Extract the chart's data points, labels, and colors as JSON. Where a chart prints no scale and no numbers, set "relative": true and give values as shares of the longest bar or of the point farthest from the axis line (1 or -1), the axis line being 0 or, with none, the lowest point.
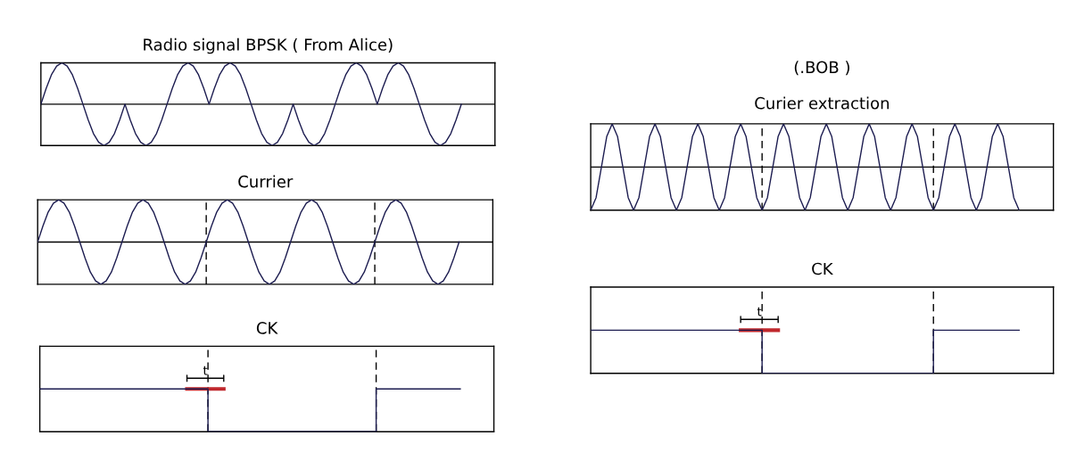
{
  "chart_data": [
    {
      "type": "line",
      "title": "Radio signal BPSK ( From Alice)",
      "relative": true,
      "categories": [
        null,
        null,
        null,
        null,
        null,
        null,
        null,
        null,
        null,
        null,
        null,
        null,
        null,
        null,
        null,
        null,
        null,
        null,
        null,
        null,
        null,
        null,
        null,
        null,
        null,
        null,
        null,
        null,
        null,
        null,
        null,
        null,
        null,
        null,
        null,
        null,
        null,
        null,
        null,
        null,
        null,
        null,
        null,
        null,
        null,
        null,
        null,
        null,
        null,
        null,
        null,
        null,
        null,
        null,
        null,
        null,
        null,
        null,
        null,
        null,
        null,
        null,
        null,
        null,
        null,
        null,
        null,
        null,
        null,
        null,
        null,
        null,
        null,
        null,
        null,
        null,
        null,
        null,
        null,
        null,
        null,
        null,
        null,
        null,
        null,
        null,
        null
      ],
      "series": [
        {
          "color": "#1c1c50",
          "values": [
            0,
            0.38,
            0.71,
            0.92,
            1,
            0.92,
            0.71,
            0.38,
            0,
            -0.38,
            -0.71,
            -0.92,
            -1,
            -0.92,
            -0.71,
            -0.38,
            0,
            -0.38,
            -0.71,
            -0.92,
            -1,
            -0.92,
            -0.71,
            -0.38,
            0,
            0.38,
            0.71,
            0.92,
            1,
            0.92,
            0.71,
            0.38,
            0,
            0.38,
            0.71,
            0.92,
            1,
            0.92,
            0.71,
            0.38,
            0,
            -0.38,
            -0.71,
            -0.92,
            -1,
            -0.92,
            -0.71,
            -0.38,
            0,
            -0.38,
            -0.71,
            -0.92,
            -1,
            -0.92,
            -0.71,
            -0.38,
            0,
            0.38,
            0.71,
            0.92,
            1,
            0.92,
            0.71,
            0.38,
            0,
            0.38,
            0.71,
            0.92,
            1,
            0.92,
            0.71,
            0.38,
            0,
            -0.38,
            -0.71,
            -0.92,
            -1,
            -0.92,
            -0.71,
            -0.38,
            0,
            null,
            null,
            null,
            null,
            null,
            null
          ]
        }
      ]
    },
    {
      "type": "line",
      "title": "Currier",
      "relative": true,
      "categories": [
        null,
        null,
        null,
        null,
        null,
        null,
        null,
        null,
        null,
        null,
        null,
        null,
        null,
        null,
        null,
        null,
        null,
        null,
        null,
        null,
        null,
        null,
        null,
        null,
        null,
        null,
        null,
        null,
        null,
        null,
        null,
        null,
        null,
        null,
        null,
        null,
        null,
        null,
        null,
        null,
        null,
        null,
        null,
        null,
        null,
        null,
        null,
        null,
        null,
        null,
        null,
        null,
        null,
        null,
        null,
        null,
        null,
        null,
        null,
        null,
        null,
        null,
        null,
        null,
        null,
        null,
        null,
        null,
        null,
        null,
        null,
        null,
        null,
        null,
        null,
        null,
        null,
        null,
        null,
        null,
        null,
        null,
        null,
        null,
        null,
        null,
        null
      ],
      "series": [
        {
          "color": "#1c1c50",
          "values": [
            0,
            0.38,
            0.71,
            0.92,
            1,
            0.92,
            0.71,
            0.38,
            0,
            -0.38,
            -0.71,
            -0.92,
            -1,
            -0.92,
            -0.71,
            -0.38,
            0,
            0.38,
            0.71,
            0.92,
            1,
            0.92,
            0.71,
            0.38,
            0,
            -0.38,
            -0.71,
            -0.92,
            -1,
            -0.92,
            -0.71,
            -0.38,
            0,
            0.38,
            0.71,
            0.92,
            1,
            0.92,
            0.71,
            0.38,
            0,
            -0.38,
            -0.71,
            -0.92,
            -1,
            -0.92,
            -0.71,
            -0.38,
            0,
            0.38,
            0.71,
            0.92,
            1,
            0.92,
            0.71,
            0.38,
            0,
            -0.38,
            -0.71,
            -0.92,
            -1,
            -0.92,
            -0.71,
            -0.38,
            0,
            0.38,
            0.71,
            0.92,
            1,
            0.92,
            0.71,
            0.38,
            0,
            -0.38,
            -0.71,
            -0.92,
            -1,
            -0.92,
            -0.71,
            -0.38,
            0,
            null,
            null,
            null,
            null,
            null,
            null
          ]
        }
      ]
    },
    {
      "type": "step",
      "title": "CK",
      "relative": true,
      "categories": [
        null,
        null,
        null,
        null,
        null,
        null,
        null,
        null,
        null,
        null,
        null,
        null,
        null,
        null,
        null,
        null,
        null,
        null,
        null,
        null,
        null,
        null,
        null,
        null,
        null,
        null,
        null,
        null,
        null,
        null,
        null,
        null,
        null,
        null,
        null,
        null,
        null,
        null,
        null,
        null,
        null,
        null,
        null,
        null,
        null,
        null,
        null,
        null,
        null,
        null,
        null,
        null,
        null,
        null,
        null,
        null,
        null,
        null,
        null,
        null,
        null,
        null,
        null,
        null,
        null,
        null,
        null,
        null,
        null,
        null,
        null,
        null,
        null,
        null,
        null,
        null,
        null,
        null,
        null,
        null,
        null,
        null,
        null,
        null,
        null,
        null,
        null
      ],
      "annotations": [
        "t"
      ],
      "series": [
        {
          "color": "#1c1c50",
          "values": [
            1,
            1,
            1,
            1,
            1,
            1,
            1,
            1,
            1,
            1,
            1,
            1,
            1,
            1,
            1,
            1,
            1,
            1,
            1,
            1,
            1,
            1,
            1,
            1,
            1,
            1,
            1,
            1,
            1,
            1,
            1,
            1,
            0,
            0,
            0,
            0,
            0,
            0,
            0,
            0,
            0,
            0,
            0,
            0,
            0,
            0,
            0,
            0,
            0,
            0,
            0,
            0,
            0,
            0,
            0,
            0,
            0,
            0,
            0,
            0,
            0,
            0,
            0,
            0,
            1,
            1,
            1,
            1,
            1,
            1,
            1,
            1,
            1,
            1,
            1,
            1,
            1,
            1,
            1,
            1,
            1,
            null,
            null,
            null,
            null,
            null,
            null
          ]
        },
        {
          "type": "line",
          "color": "#c0282d",
          "values": [
            null,
            null,
            null,
            null,
            null,
            null,
            null,
            null,
            null,
            null,
            null,
            null,
            null,
            null,
            null,
            null,
            null,
            null,
            null,
            null,
            null,
            null,
            null,
            null,
            null,
            null,
            null,
            null,
            1,
            1,
            1,
            1,
            1,
            1,
            1,
            1,
            null,
            null,
            null,
            null,
            null,
            null,
            null,
            null,
            null,
            null,
            null,
            null,
            null,
            null,
            null,
            null,
            null,
            null,
            null,
            null,
            null,
            null,
            null,
            null,
            null,
            null,
            null,
            null,
            null,
            null,
            null,
            null,
            null,
            null,
            null,
            null,
            null,
            null,
            null,
            null,
            null,
            null,
            null,
            null,
            null,
            null,
            null,
            null,
            null,
            null,
            null
          ]
        }
      ]
    },
    {
      "type": "line",
      "title": "(.BOB )",
      "subtitle": "Curier extraction",
      "relative": true,
      "categories": [
        null,
        null,
        null,
        null,
        null,
        null,
        null,
        null,
        null,
        null,
        null,
        null,
        null,
        null,
        null,
        null,
        null,
        null,
        null,
        null,
        null,
        null,
        null,
        null,
        null,
        null,
        null,
        null,
        null,
        null,
        null,
        null,
        null,
        null,
        null,
        null,
        null,
        null,
        null,
        null,
        null,
        null,
        null,
        null,
        null,
        null,
        null,
        null,
        null,
        null,
        null,
        null,
        null,
        null,
        null,
        null,
        null,
        null,
        null,
        null,
        null,
        null,
        null,
        null,
        null,
        null,
        null,
        null,
        null,
        null,
        null,
        null,
        null,
        null,
        null,
        null,
        null,
        null,
        null,
        null,
        null,
        null,
        null,
        null,
        null,
        null,
        null
      ],
      "series": [
        {
          "color": "#1c1c50",
          "values": [
            -1,
            -0.71,
            0,
            0.71,
            1,
            0.71,
            0,
            -0.71,
            -1,
            -0.71,
            0,
            0.71,
            1,
            0.71,
            0,
            -0.71,
            -1,
            -0.71,
            0,
            0.71,
            1,
            0.71,
            0,
            -0.71,
            -1,
            -0.71,
            0,
            0.71,
            1,
            0.71,
            0,
            -0.71,
            -1,
            -0.71,
            0,
            0.71,
            1,
            0.71,
            0,
            -0.71,
            -1,
            -0.71,
            0,
            0.71,
            1,
            0.71,
            0,
            -0.71,
            -1,
            -0.71,
            0,
            0.71,
            1,
            0.71,
            0,
            -0.71,
            -1,
            -0.71,
            0,
            0.71,
            1,
            0.71,
            0,
            -0.71,
            -1,
            -0.71,
            0,
            0.71,
            1,
            0.71,
            0,
            -0.71,
            -1,
            -0.71,
            0,
            0.71,
            1,
            0.71,
            0,
            -0.71,
            -1,
            null,
            null,
            null,
            null,
            null,
            null
          ]
        }
      ]
    },
    {
      "type": "step",
      "title": "CK",
      "relative": true,
      "categories": [
        null,
        null,
        null,
        null,
        null,
        null,
        null,
        null,
        null,
        null,
        null,
        null,
        null,
        null,
        null,
        null,
        null,
        null,
        null,
        null,
        null,
        null,
        null,
        null,
        null,
        null,
        null,
        null,
        null,
        null,
        null,
        null,
        null,
        null,
        null,
        null,
        null,
        null,
        null,
        null,
        null,
        null,
        null,
        null,
        null,
        null,
        null,
        null,
        null,
        null,
        null,
        null,
        null,
        null,
        null,
        null,
        null,
        null,
        null,
        null,
        null,
        null,
        null,
        null,
        null,
        null,
        null,
        null,
        null,
        null,
        null,
        null,
        null,
        null,
        null,
        null,
        null,
        null,
        null,
        null,
        null,
        null,
        null,
        null,
        null,
        null,
        null
      ],
      "annotations": [
        "t"
      ],
      "series": [
        {
          "color": "#1c1c50",
          "values": [
            1,
            1,
            1,
            1,
            1,
            1,
            1,
            1,
            1,
            1,
            1,
            1,
            1,
            1,
            1,
            1,
            1,
            1,
            1,
            1,
            1,
            1,
            1,
            1,
            1,
            1,
            1,
            1,
            1,
            1,
            1,
            1,
            0,
            0,
            0,
            0,
            0,
            0,
            0,
            0,
            0,
            0,
            0,
            0,
            0,
            0,
            0,
            0,
            0,
            0,
            0,
            0,
            0,
            0,
            0,
            0,
            0,
            0,
            0,
            0,
            0,
            0,
            0,
            0,
            1,
            1,
            1,
            1,
            1,
            1,
            1,
            1,
            1,
            1,
            1,
            1,
            1,
            1,
            1,
            1,
            1,
            null,
            null,
            null,
            null,
            null,
            null
          ]
        },
        {
          "type": "line",
          "color": "#c0282d",
          "values": [
            null,
            null,
            null,
            null,
            null,
            null,
            null,
            null,
            null,
            null,
            null,
            null,
            null,
            null,
            null,
            null,
            null,
            null,
            null,
            null,
            null,
            null,
            null,
            null,
            null,
            null,
            null,
            null,
            1,
            1,
            1,
            1,
            1,
            1,
            1,
            1,
            null,
            null,
            null,
            null,
            null,
            null,
            null,
            null,
            null,
            null,
            null,
            null,
            null,
            null,
            null,
            null,
            null,
            null,
            null,
            null,
            null,
            null,
            null,
            null,
            null,
            null,
            null,
            null,
            null,
            null,
            null,
            null,
            null,
            null,
            null,
            null,
            null,
            null,
            null,
            null,
            null,
            null,
            null,
            null,
            null,
            null,
            null,
            null,
            null,
            null,
            null
          ]
        }
      ]
    }
  ]
}
